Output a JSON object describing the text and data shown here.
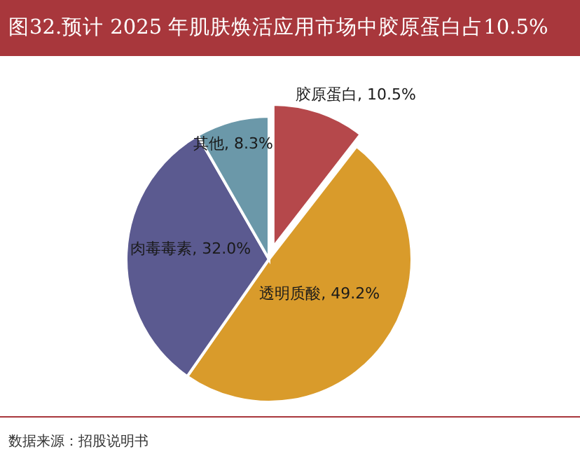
{
  "chart_data": {
    "type": "pie",
    "title": "图32.预计  2025  年肌肤焕活应用市场中胶原蛋白占10.5%",
    "categories": [
      "胶原蛋白",
      "透明质酸",
      "肉毒毒素",
      "其他"
    ],
    "values": [
      10.5,
      49.2,
      32.0,
      8.3
    ],
    "value_labels": [
      "10.5%",
      "49.2%",
      "32.0%",
      "8.3%"
    ],
    "colors": [
      "#b5484b",
      "#d99b2b",
      "#5b5a90",
      "#6b98a9"
    ],
    "annotations": [
      "数据来源：招股说明书"
    ]
  }
}
